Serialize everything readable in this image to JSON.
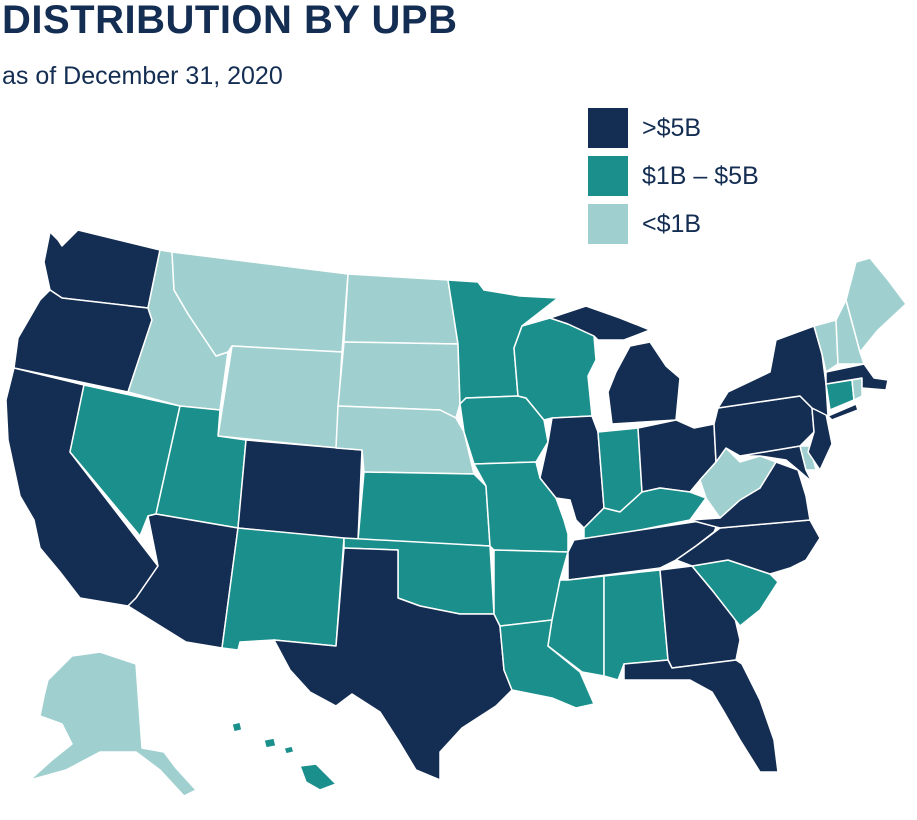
{
  "header": {
    "title": "DISTRIBUTION BY UPB",
    "subtitle": "as of December 31, 2020"
  },
  "legend": {
    "items": [
      {
        "label": ">$5B",
        "color": "#142d52"
      },
      {
        "label": "$1B – $5B",
        "color": "#1a8f8c"
      },
      {
        "label": "<$1B",
        "color": "#9fd0cf"
      }
    ]
  },
  "colors": {
    "text": "#142d52",
    "high": "#142d52",
    "mid": "#1a8f8c",
    "low": "#9fd0cf",
    "border": "#ffffff"
  },
  "map": {
    "states": {
      "WA": "high",
      "OR": "high",
      "CA": "high",
      "NV": "mid",
      "ID": "low",
      "MT": "low",
      "WY": "low",
      "UT": "mid",
      "AZ": "high",
      "CO": "high",
      "NM": "mid",
      "ND": "low",
      "SD": "low",
      "NE": "low",
      "KS": "mid",
      "OK": "mid",
      "TX": "high",
      "MN": "mid",
      "IA": "mid",
      "MO": "mid",
      "AR": "mid",
      "LA": "mid",
      "WI": "mid",
      "IL": "high",
      "MI": "high",
      "IN": "mid",
      "OH": "high",
      "KY": "mid",
      "TN": "high",
      "MS": "mid",
      "AL": "mid",
      "GA": "high",
      "FL": "high",
      "SC": "mid",
      "NC": "high",
      "VA": "high",
      "WV": "low",
      "MD": "high",
      "DE": "low",
      "PA": "high",
      "NJ": "high",
      "NY": "high",
      "CT": "mid",
      "RI": "low",
      "MA": "high",
      "VT": "low",
      "NH": "low",
      "ME": "low",
      "AK": "low",
      "HI": "mid"
    }
  }
}
